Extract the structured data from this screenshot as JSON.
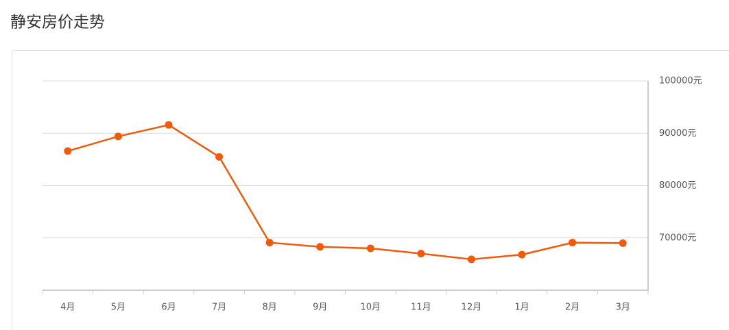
{
  "chart_data": {
    "type": "line",
    "title": "静安房价走势",
    "categories": [
      "4月",
      "5月",
      "6月",
      "7月",
      "8月",
      "9月",
      "10月",
      "11月",
      "12月",
      "1月",
      "2月",
      "3月"
    ],
    "series": [
      {
        "color": "#f25a0a",
        "values": [
          86600,
          89400,
          91600,
          85500,
          69100,
          68300,
          68000,
          67000,
          65900,
          66800,
          69100,
          69000
        ]
      }
    ],
    "ylim": [
      60000,
      100000
    ],
    "yticks": [
      {
        "value": 100000,
        "label": "100000元"
      },
      {
        "value": 90000,
        "label": "90000元"
      },
      {
        "value": 80000,
        "label": "80000元"
      },
      {
        "value": 70000,
        "label": "70000元"
      }
    ],
    "grid": true
  }
}
